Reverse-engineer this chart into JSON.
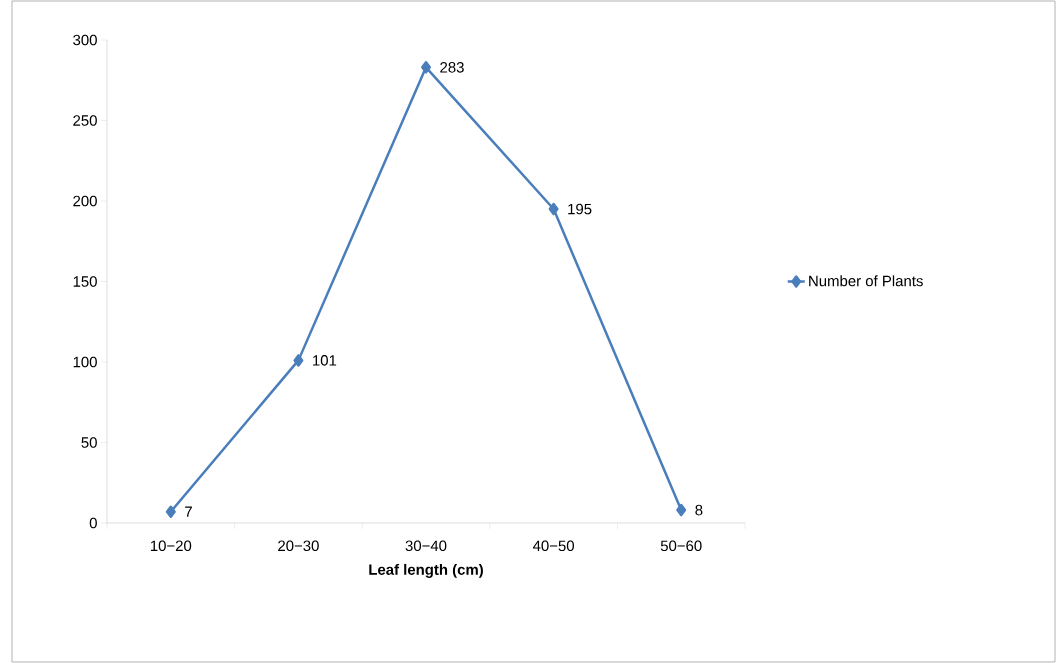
{
  "chart_data": {
    "type": "line",
    "xlabel": "Leaf length (cm)",
    "categories": [
      "10−20",
      "20−30",
      "30−40",
      "40−50",
      "50−60"
    ],
    "series": [
      {
        "name": "Number of Plants",
        "color": "#4a7ebb",
        "values": [
          7,
          101,
          283,
          195,
          8
        ]
      }
    ],
    "ylim": [
      0,
      300
    ],
    "yticks": [
      0,
      50,
      100,
      150,
      200,
      250,
      300
    ],
    "marker": "diamond",
    "line_style": "solid",
    "legend": "right",
    "grid": false,
    "data_labels": true
  }
}
